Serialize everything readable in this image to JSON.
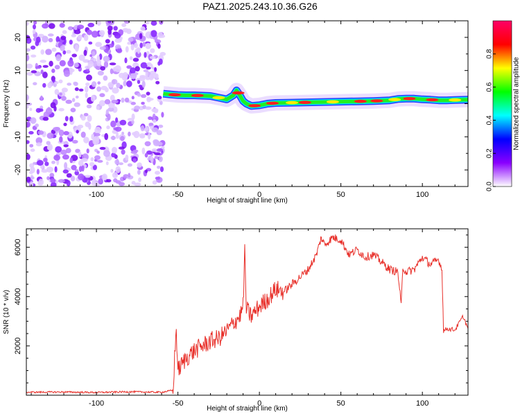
{
  "title": "PAZ1.2025.243.10.36.G26",
  "chart_data": [
    {
      "type": "heatmap",
      "name": "spectrogram",
      "xlabel": "Height of straight line (km)",
      "ylabel": "Frequency (Hz)",
      "xlim": [
        -143,
        128
      ],
      "ylim": [
        -25,
        25
      ],
      "xticks": [
        -100,
        -50,
        0,
        50,
        100
      ],
      "yticks": [
        -20,
        -10,
        0,
        10,
        20
      ],
      "noise_region_x": [
        -143,
        -59
      ],
      "signal_trace": {
        "x": [
          -59,
          -55,
          -50,
          -45,
          -40,
          -35,
          -30,
          -25,
          -20,
          -16,
          -14,
          -12,
          -10,
          -8,
          -5,
          0,
          5,
          10,
          20,
          30,
          40,
          50,
          60,
          70,
          80,
          85,
          90,
          95,
          100,
          105,
          110,
          115,
          120,
          128
        ],
        "freq": [
          3,
          2.8,
          2.6,
          2.5,
          2.5,
          2.4,
          2.3,
          1.8,
          1.3,
          2.5,
          4,
          2.5,
          0.8,
          0,
          -0.7,
          -0.5,
          0,
          0.2,
          0.3,
          0.4,
          0.5,
          0.6,
          0.7,
          0.8,
          1.0,
          1.4,
          1.5,
          1.5,
          1.3,
          1.2,
          1.0,
          1.0,
          1.1,
          1.2
        ]
      },
      "colorbar": {
        "label": "Normalized spectral amplitude",
        "ticks": [
          0.0,
          0.2,
          0.4,
          0.6,
          0.8
        ],
        "tick_labels": [
          "0.0",
          "0.2",
          "0.4",
          "0.6",
          "0.8"
        ],
        "range": [
          0,
          1
        ],
        "colors": [
          "#ffffff",
          "#8a00ff",
          "#0000ff",
          "#00ffff",
          "#00ff00",
          "#ffff00",
          "#ff0000",
          "#ff0066"
        ]
      }
    },
    {
      "type": "line",
      "name": "snr",
      "xlabel": "Height of straight line (km)",
      "ylabel": "SNR (10 * v/v)",
      "xlim": [
        -143,
        128
      ],
      "ylim": [
        0,
        6750
      ],
      "xticks": [
        -100,
        -50,
        0,
        50,
        100
      ],
      "yticks": [
        2000,
        4000,
        6000
      ],
      "series": [
        {
          "name": "SNR",
          "color": "#e8302a",
          "x": [
            -143,
            -120,
            -100,
            -80,
            -60,
            -53,
            -52,
            -51,
            -50,
            -45,
            -40,
            -35,
            -30,
            -25,
            -20,
            -15,
            -12,
            -10,
            -9,
            -8,
            -5,
            0,
            5,
            10,
            15,
            20,
            25,
            30,
            35,
            38,
            40,
            45,
            50,
            55,
            60,
            65,
            70,
            75,
            80,
            85,
            87,
            88,
            90,
            95,
            100,
            105,
            110,
            112,
            113,
            115,
            120,
            125,
            128
          ],
          "y": [
            120,
            130,
            110,
            140,
            120,
            200,
            1500,
            2700,
            1000,
            1500,
            1800,
            2000,
            2200,
            2300,
            2600,
            3000,
            3200,
            3600,
            5800,
            3500,
            3200,
            3600,
            3900,
            4300,
            4200,
            4500,
            4800,
            5100,
            5700,
            6400,
            6100,
            6400,
            6300,
            5700,
            5900,
            5600,
            5700,
            5400,
            5100,
            5000,
            3600,
            5200,
            5000,
            5100,
            5600,
            5300,
            5500,
            5100,
            2600,
            2700,
            2650,
            3200,
            2700
          ]
        }
      ]
    }
  ]
}
